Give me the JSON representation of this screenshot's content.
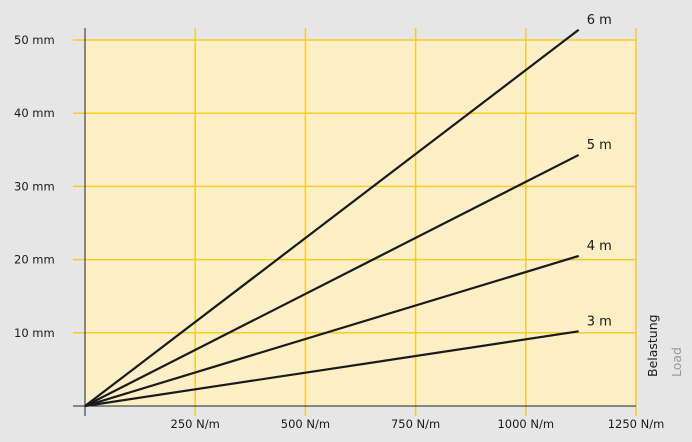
{
  "chart_data": {
    "type": "line",
    "title": "",
    "xlabel": [
      "Belastung",
      "Load"
    ],
    "ylabel": "",
    "x_unit": "N/m",
    "y_unit": "mm",
    "xlim": [
      0,
      1250
    ],
    "ylim": [
      0,
      50
    ],
    "x_ticks": [
      250,
      500,
      750,
      1000,
      1250
    ],
    "y_ticks": [
      10,
      20,
      30,
      40,
      50
    ],
    "x_tick_labels": [
      "250 N/m",
      "500 N/m",
      "750 N/m",
      "1000 N/m",
      "1250 N/m"
    ],
    "y_tick_labels": [
      "10 mm",
      "20 mm",
      "30 mm",
      "40 mm",
      "50 mm"
    ],
    "grid": true,
    "series": [
      {
        "name": "3 m",
        "points": [
          [
            0,
            0
          ],
          [
            1120,
            10.2
          ]
        ]
      },
      {
        "name": "4 m",
        "points": [
          [
            0,
            0
          ],
          [
            1120,
            20.5
          ]
        ]
      },
      {
        "name": "5 m",
        "points": [
          [
            0,
            0
          ],
          [
            1120,
            34.3
          ]
        ]
      },
      {
        "name": "6 m",
        "points": [
          [
            0,
            0
          ],
          [
            1120,
            51.4
          ]
        ]
      }
    ],
    "colors": {
      "plot_background": "#fcefc6",
      "grid": "#f5cc2a",
      "axis": "#222222",
      "series": "#1a1a1a",
      "load_secondary": "#9a9a9a"
    }
  }
}
